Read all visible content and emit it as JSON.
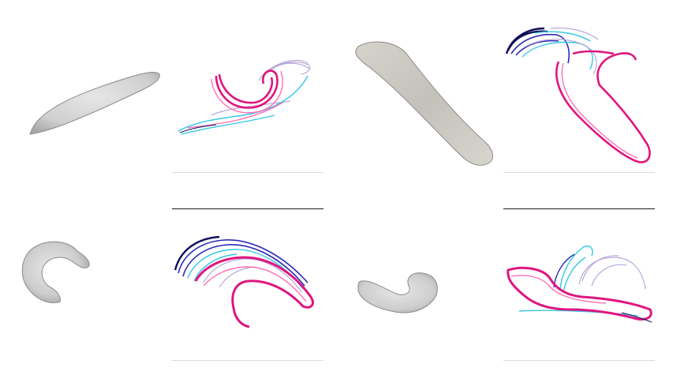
{
  "figure": {
    "background": "#ffffff",
    "panels": [
      {
        "row": 1,
        "col": 1,
        "kind": "grayscale-worm",
        "pose": "elongated-diagonal"
      },
      {
        "row": 1,
        "col": 2,
        "kind": "color-contour-trace",
        "pose": "curled-hook"
      },
      {
        "row": 1,
        "col": 3,
        "kind": "grayscale-worm",
        "pose": "elongated-descending"
      },
      {
        "row": 1,
        "col": 4,
        "kind": "color-contour-trace",
        "pose": "bent-loop"
      },
      {
        "row": 2,
        "col": 1,
        "kind": "grayscale-worm",
        "pose": "c-shape"
      },
      {
        "row": 2,
        "col": 2,
        "kind": "color-contour-trace",
        "pose": "arched-crescent"
      },
      {
        "row": 2,
        "col": 3,
        "kind": "grayscale-worm",
        "pose": "short-hook"
      },
      {
        "row": 2,
        "col": 4,
        "kind": "color-contour-trace",
        "pose": "flat-sweep"
      }
    ],
    "palette": {
      "worm_fill": "#cfcfcf",
      "worm_edge": "#8a8a8a",
      "trace_magenta": "#e0157f",
      "trace_pink": "#ff6fb5",
      "trace_cyan": "#35c8e6",
      "trace_blue": "#2a2ab8",
      "trace_navy": "#10105a",
      "trace_lavender": "#b9a8d8"
    }
  }
}
